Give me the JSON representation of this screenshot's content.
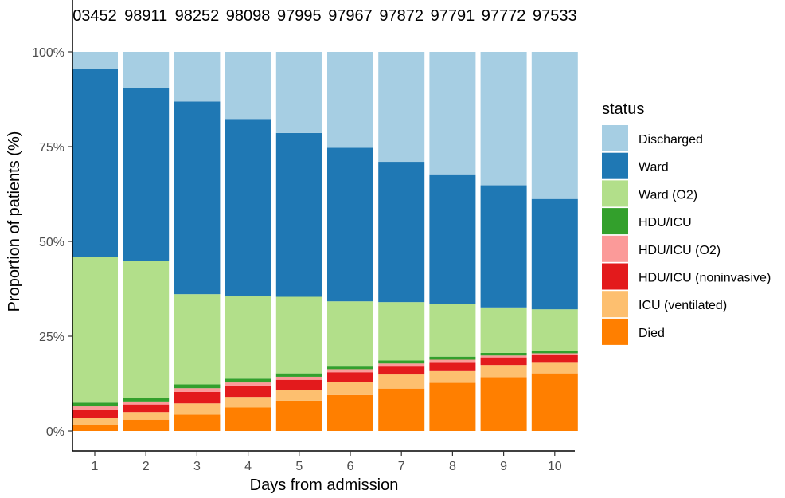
{
  "chart_data": {
    "type": "bar",
    "stacked": true,
    "percent": true,
    "xlabel": "Days from admission",
    "ylabel": "Proportion of patients (%)",
    "categories": [
      "1",
      "2",
      "3",
      "4",
      "5",
      "6",
      "7",
      "8",
      "9",
      "10"
    ],
    "top_labels": [
      "03452",
      "98911",
      "98252",
      "98098",
      "97995",
      "97967",
      "97872",
      "97791",
      "97772",
      "97533"
    ],
    "y_ticks": [
      "0%",
      "25%",
      "50%",
      "75%",
      "100%"
    ],
    "ylim": [
      0,
      100
    ],
    "legend_title": "status",
    "legend_position": "right",
    "grid": false,
    "series": [
      {
        "name": "Died",
        "color": "#FF7F00",
        "values": [
          1.5,
          3.0,
          4.3,
          6.2,
          8.0,
          9.5,
          11.2,
          12.7,
          14.2,
          15.2
        ]
      },
      {
        "name": "ICU (ventilated)",
        "color": "#FDBF6F",
        "values": [
          2.0,
          2.0,
          3.0,
          2.8,
          2.8,
          3.5,
          3.7,
          3.3,
          3.2,
          3.0
        ]
      },
      {
        "name": "HDU/ICU (noninvasive)",
        "color": "#E31A1C",
        "values": [
          2.0,
          2.0,
          3.0,
          3.0,
          2.7,
          2.5,
          2.3,
          2.2,
          2.0,
          1.8
        ]
      },
      {
        "name": "HDU/ICU (O2)",
        "color": "#FB9A99",
        "values": [
          1.0,
          0.8,
          1.0,
          0.8,
          0.8,
          0.8,
          0.6,
          0.6,
          0.5,
          0.5
        ]
      },
      {
        "name": "HDU/ICU",
        "color": "#33A02C",
        "values": [
          1.0,
          1.0,
          1.0,
          1.0,
          0.9,
          0.9,
          0.8,
          0.8,
          0.7,
          0.6
        ]
      },
      {
        "name": "Ward (O2)",
        "color": "#B2DF8A",
        "values": [
          38.3,
          36.1,
          23.8,
          21.7,
          20.2,
          17.0,
          15.4,
          13.9,
          12.0,
          11.0
        ]
      },
      {
        "name": "Ward",
        "color": "#1F78B4",
        "values": [
          49.7,
          45.5,
          50.8,
          46.8,
          43.2,
          40.5,
          37.0,
          34.0,
          32.2,
          29.1
        ]
      },
      {
        "name": "Discharged",
        "color": "#A6CEE3",
        "values": [
          4.5,
          9.6,
          13.1,
          17.7,
          21.4,
          25.3,
          29.0,
          32.5,
          35.2,
          38.8
        ]
      }
    ],
    "legend_order": [
      "Discharged",
      "Ward",
      "Ward (O2)",
      "HDU/ICU",
      "HDU/ICU (O2)",
      "HDU/ICU (noninvasive)",
      "ICU (ventilated)",
      "Died"
    ]
  }
}
